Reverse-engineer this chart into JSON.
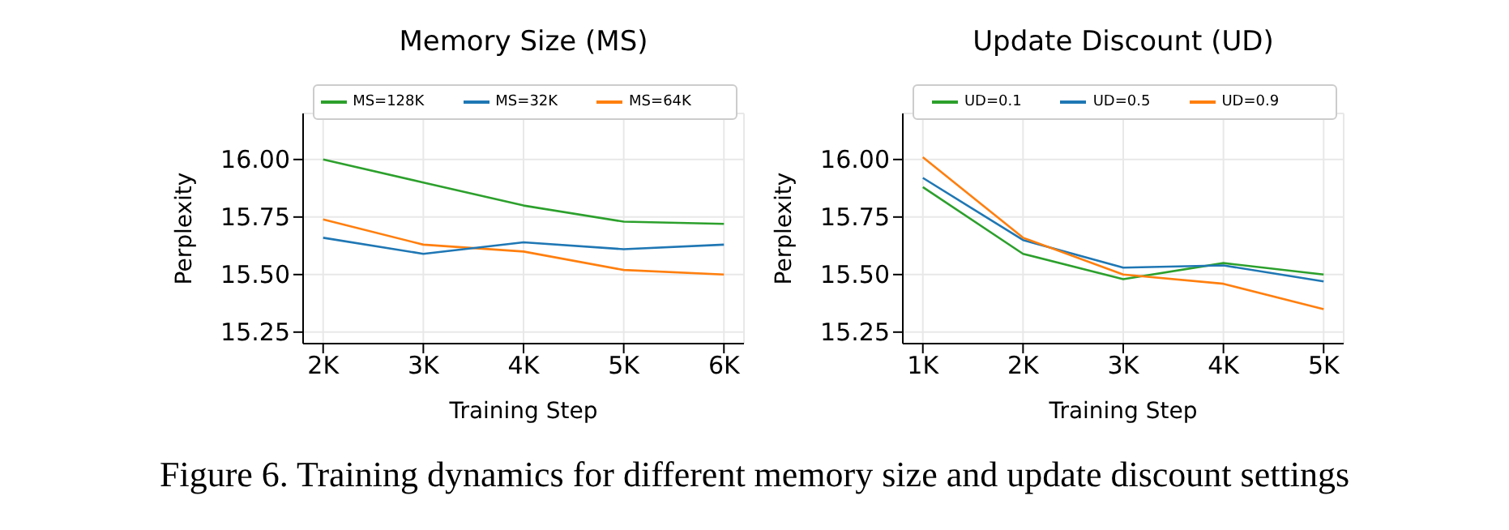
{
  "chart_data": [
    {
      "type": "line",
      "title": "Memory Size (MS)",
      "xlabel": "Training Step",
      "ylabel": "Perplexity",
      "x": [
        2000,
        3000,
        4000,
        5000,
        6000
      ],
      "xlim": [
        1800,
        6200
      ],
      "xticks": [
        {
          "value": 2000,
          "label": "2K"
        },
        {
          "value": 3000,
          "label": "3K"
        },
        {
          "value": 4000,
          "label": "4K"
        },
        {
          "value": 5000,
          "label": "5K"
        },
        {
          "value": 6000,
          "label": "6K"
        }
      ],
      "ylim": [
        15.2,
        16.2
      ],
      "yticks": [
        {
          "value": 15.25,
          "label": "15.25"
        },
        {
          "value": 15.5,
          "label": "15.50"
        },
        {
          "value": 15.75,
          "label": "15.75"
        },
        {
          "value": 16,
          "label": "16.00"
        }
      ],
      "grid": true,
      "legend": "top",
      "marker": "none",
      "line_style": "solid",
      "series": [
        {
          "name": "MS=128K",
          "color": "#2ca02c",
          "values": [
            16.0,
            15.9,
            15.8,
            15.73,
            15.72
          ]
        },
        {
          "name": "MS=64K",
          "color": "#ff7f0e",
          "values": [
            15.74,
            15.63,
            15.6,
            15.52,
            15.5
          ]
        },
        {
          "name": "MS=32K",
          "color": "#1f77b4",
          "values": [
            15.66,
            15.59,
            15.64,
            15.61,
            15.63
          ]
        }
      ],
      "annotations": [
        "Figure 6. Training dynamics for different memory size and update discount settings"
      ]
    },
    {
      "type": "line",
      "title": "Update Discount (UD)",
      "xlabel": "Training Step",
      "ylabel": "Perplexity",
      "x": [
        1000,
        2000,
        3000,
        4000,
        5000
      ],
      "xlim": [
        800,
        5200
      ],
      "xticks": [
        {
          "value": 1000,
          "label": "1K"
        },
        {
          "value": 2000,
          "label": "2K"
        },
        {
          "value": 3000,
          "label": "3K"
        },
        {
          "value": 4000,
          "label": "4K"
        },
        {
          "value": 5000,
          "label": "5K"
        }
      ],
      "ylim": [
        15.2,
        16.2
      ],
      "yticks": [
        {
          "value": 15.25,
          "label": "15.25"
        },
        {
          "value": 15.5,
          "label": "15.50"
        },
        {
          "value": 15.75,
          "label": "15.75"
        },
        {
          "value": 16,
          "label": "16.00"
        }
      ],
      "grid": true,
      "legend": "top",
      "marker": "none",
      "line_style": "solid",
      "series": [
        {
          "name": "UD=0.1",
          "color": "#2ca02c",
          "values": [
            15.88,
            15.59,
            15.48,
            15.55,
            15.5
          ]
        },
        {
          "name": "UD=0.5",
          "color": "#1f77b4",
          "values": [
            15.92,
            15.65,
            15.53,
            15.54,
            15.47
          ]
        },
        {
          "name": "UD=0.9",
          "color": "#ff7f0e",
          "values": [
            16.01,
            15.66,
            15.5,
            15.46,
            15.35
          ]
        }
      ]
    }
  ]
}
